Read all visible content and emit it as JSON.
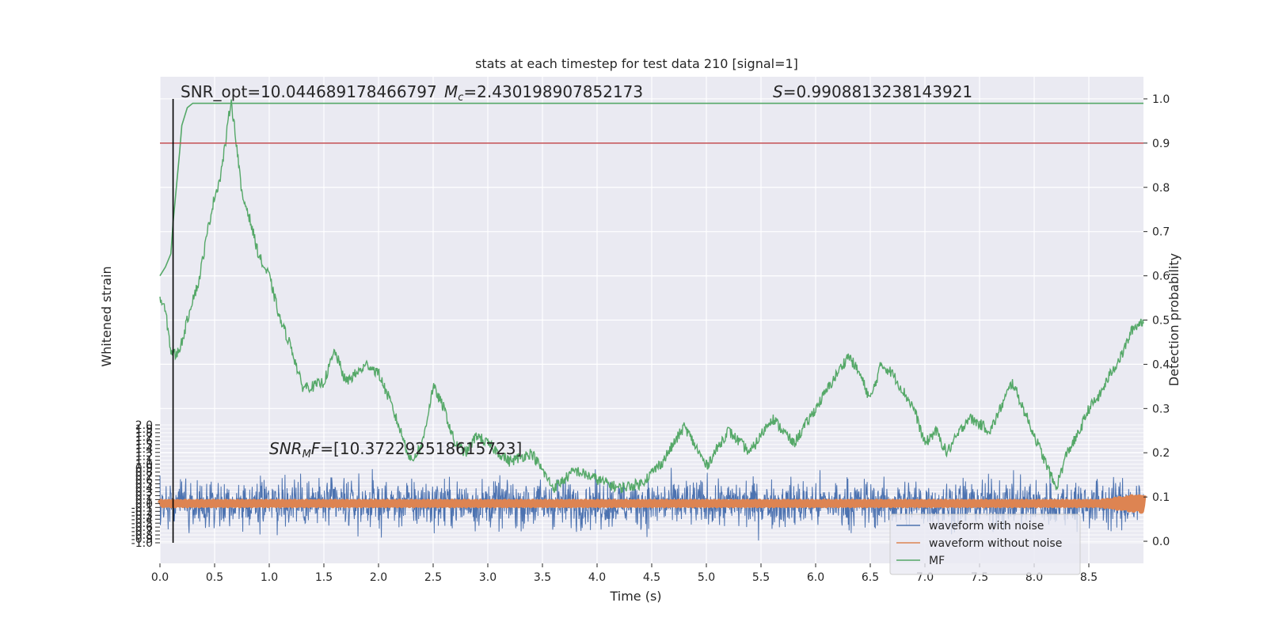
{
  "chart_data": {
    "type": "line",
    "title": "stats at each timestep for test data 210 [signal=1]",
    "xlabel": "Time (s)",
    "ylabel_left": "Whitened strain",
    "ylabel_right": "Detection probability",
    "xlim": [
      0.0,
      9.0
    ],
    "xticks": [
      "0.0",
      "0.5",
      "1.0",
      "1.5",
      "2.0",
      "2.5",
      "3.0",
      "3.5",
      "4.0",
      "4.5",
      "5.0",
      "5.5",
      "6.0",
      "6.5",
      "7.0",
      "7.5",
      "8.0",
      "8.5"
    ],
    "ylim_left": [
      -1.1,
      2.0
    ],
    "yticks_left": [
      "-1.0",
      "-0.9",
      "-0.8",
      "-0.7",
      "-0.6",
      "-0.5",
      "-0.4",
      "-0.3",
      "-0.2",
      "-0.1",
      "0.0",
      "0.1",
      "0.2",
      "0.3",
      "0.4",
      "0.5",
      "0.6",
      "0.7",
      "0.8",
      "0.9",
      "1.0",
      "1.1",
      "1.2",
      "1.3",
      "1.4",
      "1.5",
      "1.6",
      "1.7",
      "1.8",
      "1.9",
      "2.0"
    ],
    "ylim_right": [
      -0.05,
      1.05
    ],
    "yticks_right": [
      "0.0",
      "0.1",
      "0.2",
      "0.3",
      "0.4",
      "0.5",
      "0.6",
      "0.7",
      "0.8",
      "0.9",
      "1.0"
    ],
    "threshold": 0.9,
    "vline_x": 0.12,
    "annotations": {
      "snr_opt": "SNR_opt=10.044689178466797",
      "mc_symbol": "M",
      "mc_sub": "c",
      "mc_value": "=2.430198907852173",
      "s_symbol": "S",
      "s_value": "=0.9908813238143921",
      "snr_mf_prefix": "SNR",
      "snr_mf_sub": "M",
      "snr_mf_suffix": "F",
      "snr_mf_value": "=[10.372292518615723]"
    },
    "legend": {
      "position": "lower right",
      "entries": [
        "waveform with noise",
        "waveform without noise",
        "MF"
      ]
    },
    "series": [
      {
        "name": "waveform with noise",
        "axis": "left",
        "kind": "noise",
        "center": 0.0,
        "amplitude": 0.55
      },
      {
        "name": "waveform without noise",
        "axis": "left",
        "kind": "chirp",
        "center": 0.0,
        "amplitude": 0.05
      },
      {
        "name": "MF",
        "axis": "right",
        "x": [
          0.0,
          0.05,
          0.1,
          0.15,
          0.2,
          0.25,
          0.3,
          0.35,
          0.4,
          0.45,
          0.5,
          0.55,
          0.6,
          0.65,
          0.7,
          0.75,
          0.8,
          0.85,
          0.9,
          0.95,
          1.0,
          1.1,
          1.2,
          1.3,
          1.4,
          1.5,
          1.6,
          1.7,
          1.8,
          1.9,
          2.0,
          2.1,
          2.2,
          2.3,
          2.4,
          2.5,
          2.6,
          2.7,
          2.8,
          2.9,
          3.0,
          3.2,
          3.4,
          3.6,
          3.8,
          4.0,
          4.2,
          4.4,
          4.6,
          4.8,
          5.0,
          5.2,
          5.4,
          5.6,
          5.8,
          6.0,
          6.2,
          6.3,
          6.4,
          6.5,
          6.6,
          6.7,
          6.8,
          6.9,
          7.0,
          7.1,
          7.2,
          7.4,
          7.6,
          7.8,
          8.0,
          8.1,
          8.2,
          8.3,
          8.4,
          8.5,
          8.6,
          8.7,
          8.8,
          8.9,
          9.0
        ],
        "values": [
          0.55,
          0.52,
          0.43,
          0.42,
          0.45,
          0.5,
          0.55,
          0.58,
          0.65,
          0.72,
          0.78,
          0.82,
          0.9,
          1.0,
          0.9,
          0.78,
          0.75,
          0.7,
          0.65,
          0.62,
          0.6,
          0.5,
          0.44,
          0.35,
          0.35,
          0.36,
          0.43,
          0.36,
          0.38,
          0.4,
          0.38,
          0.32,
          0.25,
          0.18,
          0.22,
          0.35,
          0.3,
          0.22,
          0.2,
          0.24,
          0.22,
          0.18,
          0.2,
          0.12,
          0.16,
          0.14,
          0.12,
          0.13,
          0.18,
          0.26,
          0.17,
          0.25,
          0.2,
          0.28,
          0.22,
          0.3,
          0.38,
          0.42,
          0.38,
          0.32,
          0.4,
          0.38,
          0.34,
          0.3,
          0.22,
          0.25,
          0.2,
          0.28,
          0.25,
          0.36,
          0.24,
          0.18,
          0.12,
          0.2,
          0.24,
          0.3,
          0.33,
          0.38,
          0.42,
          0.48,
          0.5
        ]
      },
      {
        "name": "Detection probability",
        "axis": "right",
        "x": [
          0.0,
          0.05,
          0.1,
          0.12,
          0.15,
          0.18,
          0.2,
          0.25,
          0.3,
          0.4,
          0.5,
          0.6,
          0.7,
          0.8,
          1.0,
          1.5,
          2.0,
          3.0,
          4.0,
          5.0,
          6.0,
          7.0,
          8.0,
          9.0
        ],
        "values": [
          0.6,
          0.62,
          0.65,
          0.72,
          0.8,
          0.88,
          0.94,
          0.98,
          0.99,
          0.99,
          0.99,
          0.99,
          0.99,
          0.99,
          0.99,
          0.99,
          0.99,
          0.99,
          0.99,
          0.99,
          0.99,
          0.99,
          0.99,
          0.99
        ]
      }
    ],
    "grid": true,
    "colors": {
      "plot_bg": "#EAEAF2",
      "grid": "#FFFFFF",
      "noise": "#4C72B0",
      "clean": "#DD8452",
      "mf": "#55A868",
      "threshold": "#C44E52",
      "vline": "#000000",
      "text": "#262626"
    }
  }
}
